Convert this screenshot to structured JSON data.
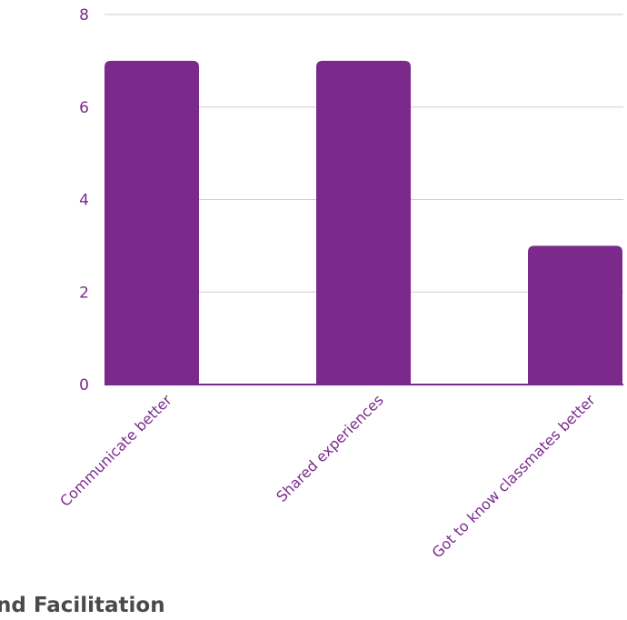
{
  "chart_data": {
    "type": "bar",
    "categories": [
      "Communicate better",
      "Shared experiences",
      "Got to know classmates better"
    ],
    "values": [
      7,
      7,
      3
    ],
    "yticks": [
      0,
      2,
      4,
      6,
      8
    ],
    "ylim": [
      0,
      8
    ],
    "grid": true,
    "legend": "none",
    "bar_color": "#7b2a8b",
    "text_color": "#7a2a8c"
  },
  "footer": {
    "section_heading": "nd Facilitation"
  }
}
